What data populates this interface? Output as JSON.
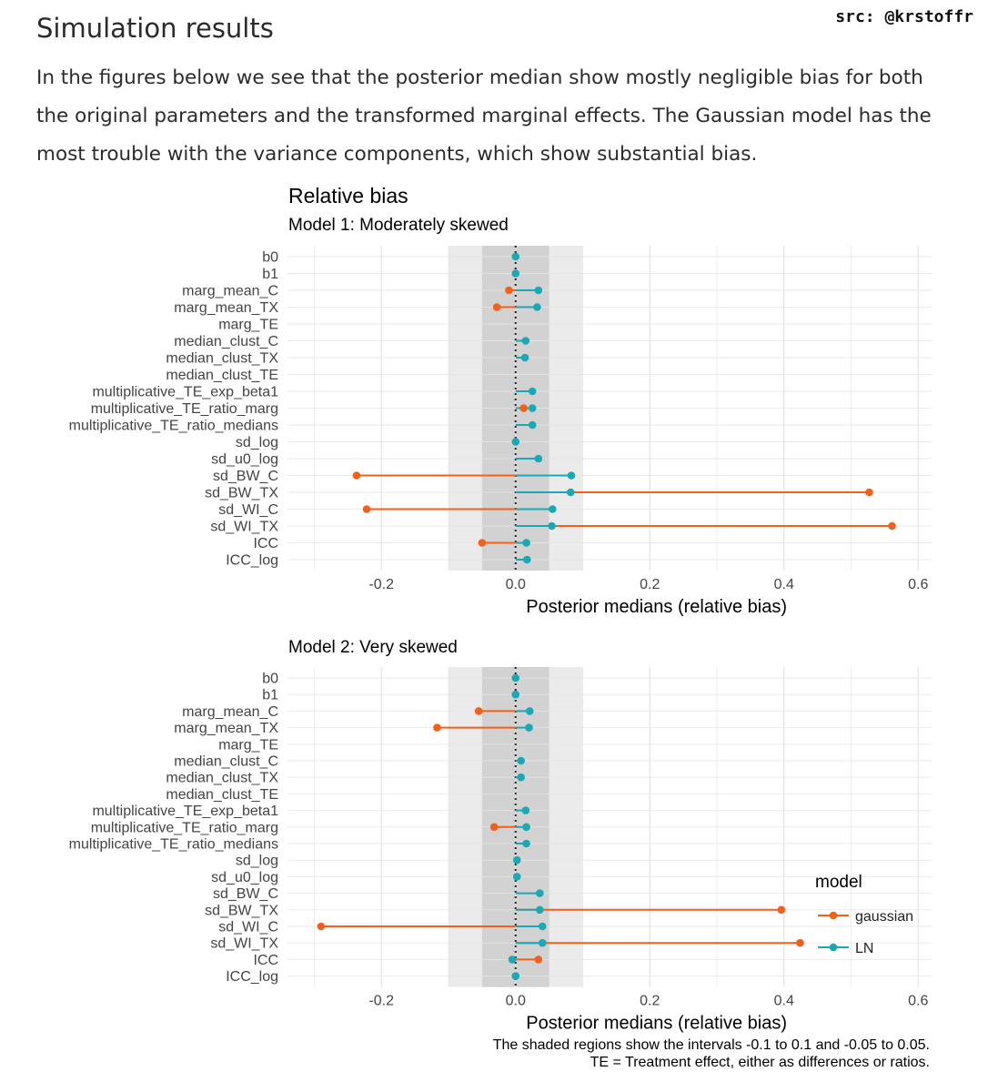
{
  "header": {
    "source_credit": "src: @krstoffr",
    "title": "Simulation results",
    "paragraph": "In the figures below we see that the posterior median show mostly negligible bias for both the original parameters and the transformed marginal effects. The Gaussian model has the most trouble with the variance components, which show substantial bias."
  },
  "colors": {
    "gaussian": "#f2601a",
    "LN": "#1aa8b5",
    "band_outer": "#ebebeb",
    "band_inner": "#d2d2d2"
  },
  "chart_data": {
    "type": "dot-range",
    "title": "Relative bias",
    "xlabel": "Posterior medians (relative bias)",
    "xlim": [
      -0.34,
      0.62
    ],
    "xticks": [
      -0.2,
      0.0,
      0.2,
      0.4,
      0.6
    ],
    "xtick_labels": [
      "-0.2",
      "0.0",
      "0.2",
      "0.4",
      "0.6"
    ],
    "shaded_regions": [
      [
        -0.1,
        0.1
      ],
      [
        -0.05,
        0.05
      ]
    ],
    "reference_line": 0,
    "legend": {
      "title": "model",
      "entries": [
        "gaussian",
        "LN"
      ],
      "placement": "right"
    },
    "caption": [
      "The shaded regions show the intervals -0.1 to 0.1 and -0.05 to 0.05.",
      "TE = Treatment effect, either as differences or ratios."
    ],
    "parameters": [
      "b0",
      "b1",
      "marg_mean_C",
      "marg_mean_TX",
      "marg_TE",
      "median_clust_C",
      "median_clust_TX",
      "median_clust_TE",
      "multiplicative_TE_exp_beta1",
      "multiplicative_TE_ratio_marg",
      "multiplicative_TE_ratio_medians",
      "sd_log",
      "sd_u0_log",
      "sd_BW_C",
      "sd_BW_TX",
      "sd_WI_C",
      "sd_WI_TX",
      "ICC",
      "ICC_log"
    ],
    "panels": [
      {
        "subtitle": "Model 1: Moderately skewed",
        "series": [
          {
            "name": "gaussian",
            "values": [
              null,
              null,
              -0.01,
              -0.028,
              null,
              null,
              null,
              null,
              null,
              0.012,
              null,
              null,
              null,
              -0.237,
              0.527,
              -0.222,
              0.561,
              -0.05,
              null
            ]
          },
          {
            "name": "LN",
            "values": [
              0.0,
              0.0,
              0.034,
              0.032,
              null,
              0.015,
              0.014,
              null,
              0.025,
              0.025,
              0.025,
              0.0,
              0.034,
              0.083,
              0.082,
              0.055,
              0.054,
              0.016,
              0.017
            ]
          }
        ]
      },
      {
        "subtitle": "Model 2: Very skewed",
        "series": [
          {
            "name": "gaussian",
            "values": [
              null,
              null,
              -0.055,
              -0.117,
              null,
              null,
              null,
              null,
              null,
              -0.032,
              null,
              null,
              null,
              null,
              0.396,
              -0.29,
              0.424,
              0.034,
              null
            ]
          },
          {
            "name": "LN",
            "values": [
              0.0,
              0.0,
              0.021,
              0.02,
              null,
              0.008,
              0.008,
              null,
              0.015,
              0.016,
              0.016,
              0.002,
              0.002,
              0.036,
              0.036,
              0.04,
              0.04,
              -0.005,
              0.0
            ]
          }
        ]
      }
    ]
  }
}
